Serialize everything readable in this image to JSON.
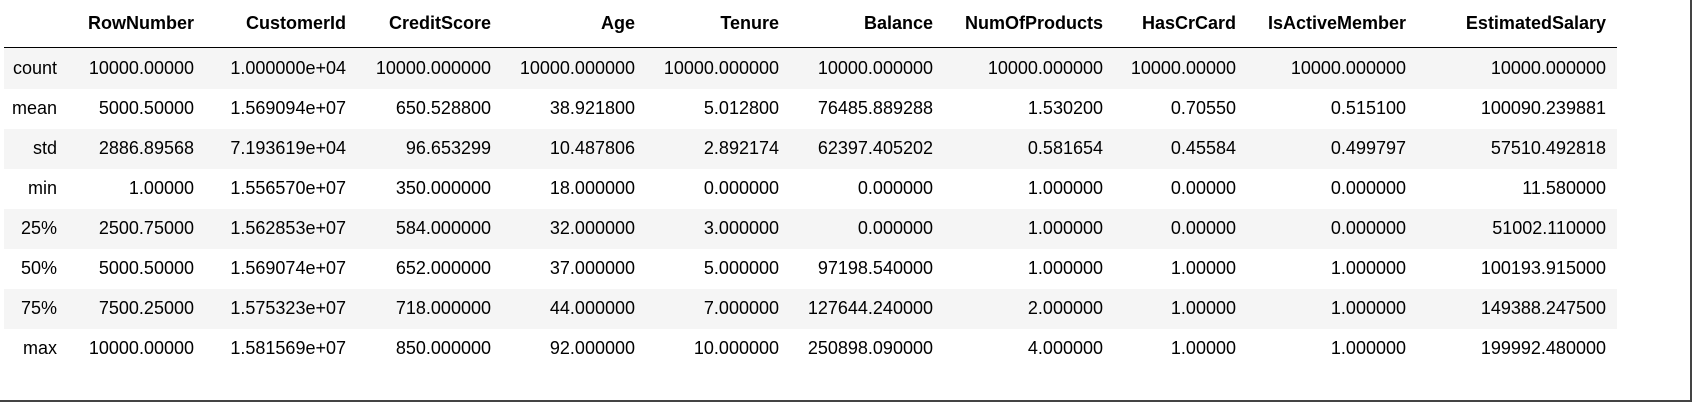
{
  "table": {
    "columns": [
      "",
      "RowNumber",
      "CustomerId",
      "CreditScore",
      "Age",
      "Tenure",
      "Balance",
      "NumOfProducts",
      "HasCrCard",
      "IsActiveMember",
      "EstimatedSalary"
    ],
    "rows": [
      [
        "count",
        "10000.00000",
        "1.000000e+04",
        "10000.000000",
        "10000.000000",
        "10000.000000",
        "10000.000000",
        "10000.000000",
        "10000.00000",
        "10000.000000",
        "10000.000000"
      ],
      [
        "mean",
        "5000.50000",
        "1.569094e+07",
        "650.528800",
        "38.921800",
        "5.012800",
        "76485.889288",
        "1.530200",
        "0.70550",
        "0.515100",
        "100090.239881"
      ],
      [
        "std",
        "2886.89568",
        "7.193619e+04",
        "96.653299",
        "10.487806",
        "2.892174",
        "62397.405202",
        "0.581654",
        "0.45584",
        "0.499797",
        "57510.492818"
      ],
      [
        "min",
        "1.00000",
        "1.556570e+07",
        "350.000000",
        "18.000000",
        "0.000000",
        "0.000000",
        "1.000000",
        "0.00000",
        "0.000000",
        "11.580000"
      ],
      [
        "25%",
        "2500.75000",
        "1.562853e+07",
        "584.000000",
        "32.000000",
        "3.000000",
        "0.000000",
        "1.000000",
        "0.00000",
        "0.000000",
        "51002.110000"
      ],
      [
        "50%",
        "5000.50000",
        "1.569074e+07",
        "652.000000",
        "37.000000",
        "5.000000",
        "97198.540000",
        "1.000000",
        "1.00000",
        "1.000000",
        "100193.915000"
      ],
      [
        "75%",
        "7500.25000",
        "1.575323e+07",
        "718.000000",
        "44.000000",
        "7.000000",
        "127644.240000",
        "2.000000",
        "1.00000",
        "1.000000",
        "149388.247500"
      ],
      [
        "max",
        "10000.00000",
        "1.581569e+07",
        "850.000000",
        "92.000000",
        "10.000000",
        "250898.090000",
        "4.000000",
        "1.00000",
        "1.000000",
        "199992.480000"
      ]
    ]
  }
}
